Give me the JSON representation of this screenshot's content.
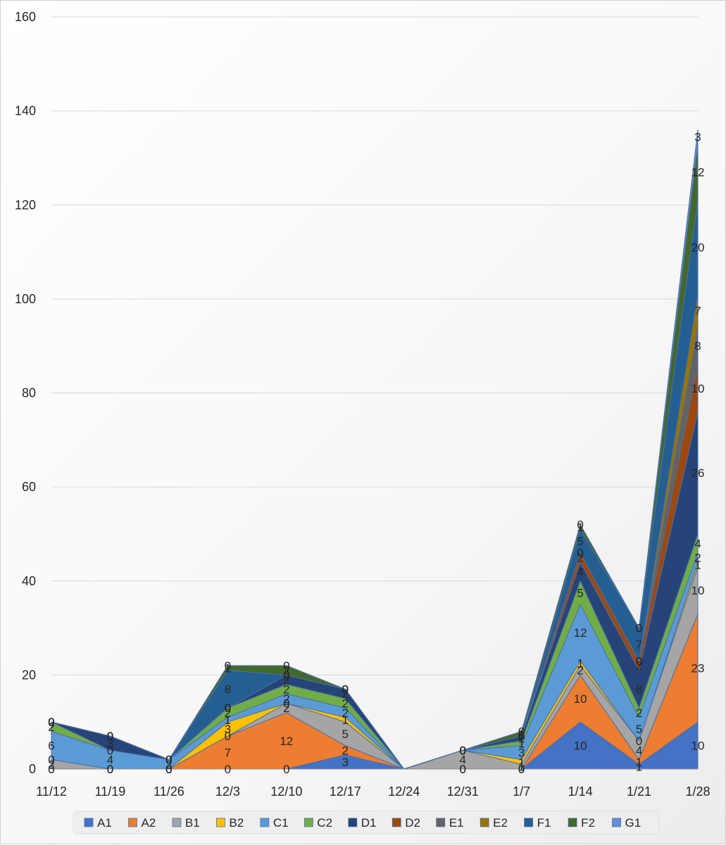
{
  "chart_data": {
    "type": "area",
    "stacked": true,
    "title": "",
    "xlabel": "",
    "ylabel": "",
    "ylim": [
      0,
      160
    ],
    "yticks": [
      0,
      20,
      40,
      60,
      80,
      100,
      120,
      140,
      160
    ],
    "grid": "horizontal",
    "legend_position": "bottom",
    "categories": [
      "11/12",
      "11/19",
      "11/26",
      "12/3",
      "12/10",
      "12/17",
      "12/24",
      "12/31",
      "1/7",
      "1/14",
      "1/21",
      "1/28"
    ],
    "series": [
      {
        "name": "A1",
        "color": "#4472C4",
        "values": [
          0,
          0,
          0,
          0,
          0,
          3,
          null,
          0,
          0,
          10,
          1,
          10
        ]
      },
      {
        "name": "A2",
        "color": "#ED7D31",
        "values": [
          0,
          0,
          0,
          7,
          12,
          2,
          null,
          0,
          0,
          10,
          1,
          23
        ]
      },
      {
        "name": "B1",
        "color": "#A5A5A5",
        "values": [
          2,
          0,
          0,
          0,
          2,
          5,
          null,
          4,
          1,
          2,
          4,
          10
        ]
      },
      {
        "name": "B2",
        "color": "#FFC000",
        "values": [
          0,
          0,
          0,
          3,
          0,
          1,
          null,
          0,
          1,
          1,
          0,
          1
        ]
      },
      {
        "name": "C1",
        "color": "#5B9BD5",
        "values": [
          6,
          4,
          2,
          1,
          2,
          2,
          null,
          0,
          3,
          12,
          5,
          2
        ]
      },
      {
        "name": "C2",
        "color": "#70AD47",
        "values": [
          2,
          0,
          0,
          2,
          2,
          2,
          null,
          0,
          1,
          5,
          2,
          4
        ]
      },
      {
        "name": "D1",
        "color": "#264478",
        "values": [
          0,
          3,
          0,
          0,
          2,
          2,
          null,
          0,
          1,
          4,
          8,
          26
        ]
      },
      {
        "name": "D2",
        "color": "#9E480E",
        "values": [
          0,
          0,
          0,
          0,
          0,
          0,
          null,
          0,
          0,
          2,
          2,
          10
        ]
      },
      {
        "name": "E1",
        "color": "#636363",
        "values": [
          0,
          0,
          0,
          0,
          0,
          0,
          null,
          0,
          0,
          0,
          0,
          8
        ]
      },
      {
        "name": "E2",
        "color": "#997300",
        "values": [
          0,
          0,
          0,
          0,
          0,
          0,
          null,
          0,
          0,
          0,
          0,
          7
        ]
      },
      {
        "name": "F1",
        "color": "#255E91",
        "values": [
          0,
          0,
          0,
          8,
          0,
          0,
          null,
          0,
          0,
          5,
          7,
          20
        ]
      },
      {
        "name": "F2",
        "color": "#43682B",
        "values": [
          0,
          0,
          0,
          1,
          2,
          0,
          null,
          0,
          1,
          1,
          0,
          12
        ]
      },
      {
        "name": "G1",
        "color": "#698ED0",
        "values": [
          0,
          0,
          0,
          0,
          0,
          0,
          null,
          0,
          0,
          0,
          0,
          3
        ]
      }
    ],
    "labels": [
      [
        "0",
        "0",
        "0",
        "0",
        "0",
        "3",
        "",
        "0",
        "0",
        "10",
        "1",
        "10"
      ],
      [
        "0",
        "0",
        "0",
        "7",
        "12",
        "2",
        "",
        "0",
        "0",
        "10",
        "1",
        "23"
      ],
      [
        "2",
        "0",
        "0",
        "0",
        "2",
        "5",
        "",
        "4",
        "1",
        "2",
        "4",
        "10"
      ],
      [
        "0",
        "0",
        "0",
        "3",
        "0",
        "1",
        "",
        "0",
        "1",
        "1",
        "0",
        "1"
      ],
      [
        "6",
        "4",
        "2",
        "1",
        "2",
        "2",
        "",
        "0",
        "3",
        "12",
        "5",
        "2"
      ],
      [
        "2",
        "0",
        "0",
        "2",
        "2",
        "2",
        "",
        "0",
        "1",
        "5",
        "2",
        "4"
      ],
      [
        "0",
        "3",
        "0",
        "0",
        "2",
        "2",
        "",
        "0",
        "1",
        "4",
        "8",
        "26"
      ],
      [
        "0",
        "0",
        "0",
        "0",
        "0",
        "0",
        "",
        "0",
        "0",
        "2",
        "2",
        "10"
      ],
      [
        "0",
        "0",
        "0",
        "0",
        "0",
        "0",
        "",
        "0",
        "0",
        "0",
        "0",
        "8"
      ],
      [
        "0",
        "0",
        "0",
        "0",
        "0",
        "0",
        "",
        "0",
        "0",
        "0",
        "0",
        "7"
      ],
      [
        "0",
        "0",
        "0",
        "8",
        "0",
        "0",
        "",
        "0",
        "0",
        "5",
        "7",
        "20"
      ],
      [
        "0",
        "0",
        "0",
        "1",
        "2",
        "0",
        "",
        "0",
        "1",
        "1",
        "0",
        "12"
      ],
      [
        "0",
        "0",
        "0",
        "0",
        "0",
        "0",
        "",
        "0",
        "0",
        "0",
        "0",
        "3"
      ]
    ]
  }
}
